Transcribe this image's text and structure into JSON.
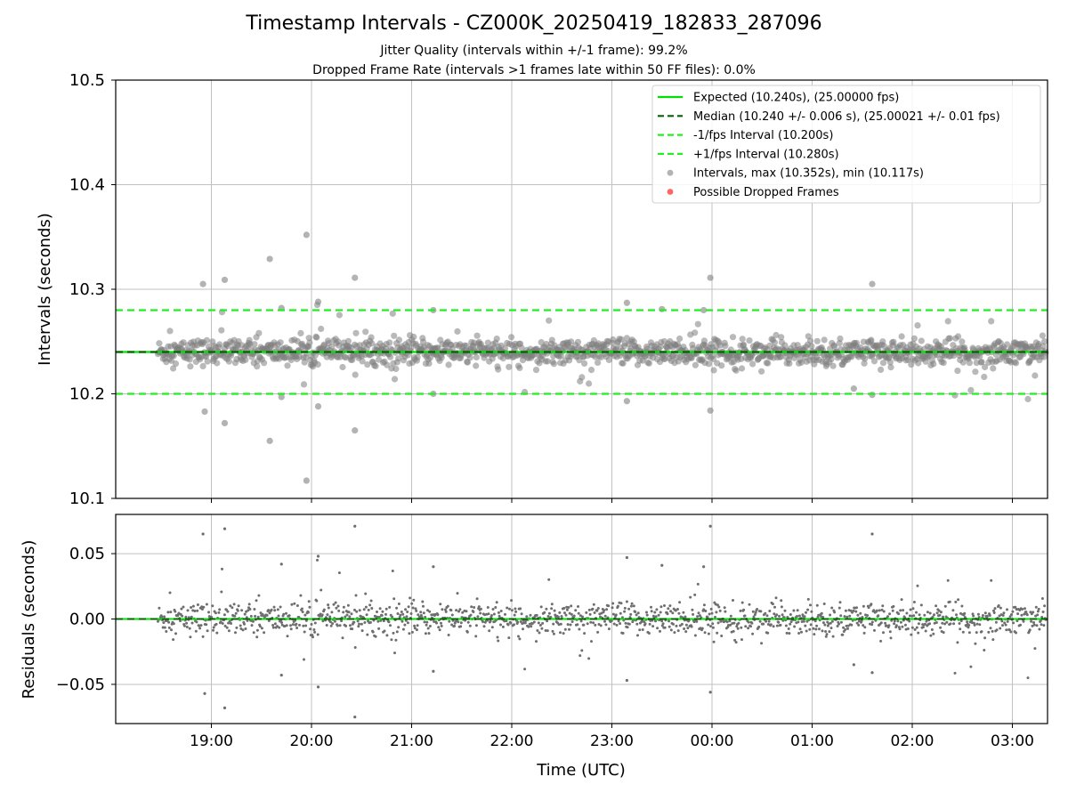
{
  "figure": {
    "title": "Timestamp Intervals - CZ000K_20250419_182833_287096",
    "subtitle_1": "Jitter Quality (intervals within +/-1 frame): 99.2%",
    "subtitle_2": "Dropped Frame Rate (intervals >1 frames late within 50 FF files): 0.0%"
  },
  "colors": {
    "expected": "#00e000",
    "median": "#006400",
    "interval_bounds": "#22ee22",
    "points": "#808080",
    "dropped": "#ff5555",
    "grid": "#c0c0c0"
  },
  "chart_data": [
    {
      "type": "scatter",
      "title": "Timestamp Intervals - CZ000K_20250419_182833_287096",
      "ylabel": "Intervals (seconds)",
      "xlabel": "",
      "ylim": [
        10.1,
        10.5
      ],
      "yticks": [
        "10.1",
        "10.2",
        "10.3",
        "10.4",
        "10.5"
      ],
      "xticks": [
        "19:00",
        "20:00",
        "21:00",
        "22:00",
        "23:00",
        "00:00",
        "01:00",
        "02:00",
        "03:00"
      ],
      "grid": true,
      "legend_position": "top-right",
      "reference_lines": {
        "expected": 10.24,
        "median": 10.24,
        "minus_interval": 10.2,
        "plus_interval": 10.28
      },
      "legend": [
        {
          "label": "Expected (10.240s), (25.00000 fps)",
          "style": "solid-line",
          "color": "#00e000"
        },
        {
          "label": "Median (10.240 +/- 0.006 s), (25.00021 +/- 0.01 fps)",
          "style": "dashed-line",
          "color": "#006400"
        },
        {
          "label": "-1/fps Interval (10.200s)",
          "style": "dashed-line",
          "color": "#22ee22"
        },
        {
          "label": "+1/fps Interval (10.280s)",
          "style": "dashed-line",
          "color": "#22ee22"
        },
        {
          "label": "Intervals, max (10.352s), min (10.117s)",
          "style": "marker",
          "color": "#a0a0a0"
        },
        {
          "label": "Possible Dropped Frames",
          "style": "marker",
          "color": "#ff5555"
        }
      ],
      "start_time": "18:28",
      "end_time": "03:20",
      "outliers": [
        {
          "t": "18:55",
          "y": 10.305
        },
        {
          "t": "18:56",
          "y": 10.183
        },
        {
          "t": "19:08",
          "y": 10.309
        },
        {
          "t": "19:08",
          "y": 10.172
        },
        {
          "t": "19:35",
          "y": 10.329
        },
        {
          "t": "19:35",
          "y": 10.155
        },
        {
          "t": "19:57",
          "y": 10.352
        },
        {
          "t": "19:57",
          "y": 10.117
        },
        {
          "t": "20:04",
          "y": 10.288
        },
        {
          "t": "20:04",
          "y": 10.188
        },
        {
          "t": "20:26",
          "y": 10.311
        },
        {
          "t": "20:26",
          "y": 10.165
        },
        {
          "t": "19:42",
          "y": 10.282
        },
        {
          "t": "19:42",
          "y": 10.197
        },
        {
          "t": "21:13",
          "y": 10.28
        },
        {
          "t": "21:13",
          "y": 10.2
        },
        {
          "t": "23:09",
          "y": 10.287
        },
        {
          "t": "23:09",
          "y": 10.193
        },
        {
          "t": "23:30",
          "y": 10.281
        },
        {
          "t": "23:55",
          "y": 10.28
        },
        {
          "t": "23:59",
          "y": 10.311
        },
        {
          "t": "23:59",
          "y": 10.184
        },
        {
          "t": "01:36",
          "y": 10.305
        },
        {
          "t": "01:36",
          "y": 10.199
        },
        {
          "t": "01:25",
          "y": 10.205
        }
      ],
      "series": [
        {
          "name": "Intervals, max (10.352s), min (10.117s)",
          "center": 10.24,
          "typical_spread": 0.006,
          "count": 3100
        }
      ]
    },
    {
      "type": "scatter",
      "ylabel": "Residuals (seconds)",
      "xlabel": "Time (UTC)",
      "ylim": [
        -0.08,
        0.08
      ],
      "yticks": [
        "−0.05",
        "0.00",
        "0.05"
      ],
      "xticks": [
        "19:00",
        "20:00",
        "21:00",
        "22:00",
        "23:00",
        "00:00",
        "01:00",
        "02:00",
        "03:00"
      ],
      "grid": true,
      "reference_lines": {
        "zero": 0.0
      },
      "series": [
        {
          "name": "",
          "center": 0.0,
          "typical_spread": 0.006,
          "count": 3100
        }
      ]
    }
  ]
}
